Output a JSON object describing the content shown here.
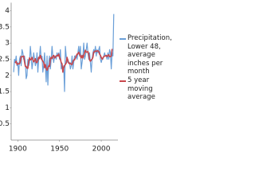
{
  "chart_data": {
    "type": "line",
    "x": [
      1895,
      1896,
      1897,
      1898,
      1899,
      1900,
      1901,
      1902,
      1903,
      1904,
      1905,
      1906,
      1907,
      1908,
      1909,
      1910,
      1911,
      1912,
      1913,
      1914,
      1915,
      1916,
      1917,
      1918,
      1919,
      1920,
      1921,
      1922,
      1923,
      1924,
      1925,
      1926,
      1927,
      1928,
      1929,
      1930,
      1931,
      1932,
      1933,
      1934,
      1935,
      1936,
      1937,
      1938,
      1939,
      1940,
      1941,
      1942,
      1943,
      1944,
      1945,
      1946,
      1947,
      1948,
      1949,
      1950,
      1951,
      1952,
      1953,
      1954,
      1955,
      1956,
      1957,
      1958,
      1959,
      1960,
      1961,
      1962,
      1963,
      1964,
      1965,
      1966,
      1967,
      1968,
      1969,
      1970,
      1971,
      1972,
      1973,
      1974,
      1975,
      1976,
      1977,
      1978,
      1979,
      1980,
      1981,
      1982,
      1983,
      1984,
      1985,
      1986,
      1987,
      1988,
      1989,
      1990,
      1991,
      1992,
      1993,
      1994,
      1995,
      1996,
      1997,
      1998,
      1999,
      2000,
      2001,
      2002,
      2003,
      2004,
      2005,
      2006,
      2007,
      2008,
      2009,
      2010,
      2011,
      2012,
      2013,
      2014,
      2015
    ],
    "series": [
      {
        "name": "Precipitation, Lower 48, average inches per month",
        "color": "#6a9fd8",
        "values": [
          2.1,
          2.5,
          2.4,
          2.6,
          2.3,
          2.4,
          2.0,
          2.5,
          2.6,
          2.3,
          2.8,
          2.7,
          2.5,
          2.6,
          2.4,
          1.9,
          2.0,
          2.5,
          2.3,
          2.4,
          2.9,
          2.6,
          2.2,
          2.4,
          2.7,
          2.5,
          2.3,
          2.4,
          2.7,
          2.1,
          2.5,
          2.6,
          2.9,
          2.5,
          2.6,
          2.1,
          2.3,
          2.7,
          2.3,
          1.8,
          2.6,
          1.7,
          2.4,
          2.6,
          2.2,
          2.5,
          2.9,
          2.6,
          2.4,
          2.6,
          2.6,
          2.5,
          2.7,
          2.6,
          2.7,
          2.5,
          2.8,
          2.2,
          2.3,
          2.2,
          2.3,
          1.5,
          2.9,
          2.6,
          2.4,
          2.5,
          2.4,
          2.4,
          2.2,
          2.3,
          2.6,
          2.2,
          2.4,
          2.6,
          2.6,
          2.6,
          2.5,
          2.7,
          2.9,
          2.6,
          2.9,
          2.2,
          2.4,
          2.6,
          3.0,
          2.5,
          2.6,
          2.8,
          3.0,
          2.7,
          2.5,
          2.7,
          2.4,
          2.1,
          2.5,
          2.7,
          2.8,
          2.7,
          2.9,
          2.6,
          2.8,
          2.7,
          2.8,
          2.9,
          2.5,
          2.4,
          2.5,
          2.5,
          2.6,
          2.7,
          2.6,
          2.6,
          2.5,
          2.7,
          2.5,
          2.8,
          2.7,
          2.2,
          2.7,
          2.6,
          3.9
        ]
      },
      {
        "name": "5 year moving average",
        "color": "#c8464b",
        "values": [
          null,
          null,
          2.38,
          2.44,
          2.34,
          2.36,
          2.36,
          2.36,
          2.44,
          2.58,
          2.58,
          2.58,
          2.6,
          2.42,
          2.28,
          2.28,
          2.22,
          2.22,
          2.42,
          2.54,
          2.48,
          2.5,
          2.56,
          2.48,
          2.42,
          2.46,
          2.52,
          2.4,
          2.4,
          2.46,
          2.56,
          2.52,
          2.62,
          2.54,
          2.48,
          2.44,
          2.4,
          2.24,
          2.34,
          2.22,
          2.16,
          2.22,
          2.3,
          2.28,
          2.52,
          2.56,
          2.52,
          2.6,
          2.62,
          2.54,
          2.56,
          2.6,
          2.62,
          2.6,
          2.66,
          2.56,
          2.5,
          2.4,
          2.36,
          2.1,
          2.24,
          2.3,
          2.34,
          2.38,
          2.56,
          2.46,
          2.38,
          2.36,
          2.38,
          2.34,
          2.34,
          2.42,
          2.48,
          2.48,
          2.54,
          2.6,
          2.66,
          2.66,
          2.72,
          2.66,
          2.6,
          2.54,
          2.62,
          2.54,
          2.62,
          2.7,
          2.78,
          2.72,
          2.72,
          2.74,
          2.66,
          2.48,
          2.44,
          2.48,
          2.5,
          2.56,
          2.72,
          2.74,
          2.76,
          2.74,
          2.76,
          2.76,
          2.74,
          2.66,
          2.62,
          2.56,
          2.5,
          2.54,
          2.58,
          2.6,
          2.6,
          2.62,
          2.58,
          2.62,
          2.64,
          2.58,
          2.58,
          2.6,
          2.82,
          null,
          null
        ]
      }
    ],
    "xlim": [
      1892,
      2020
    ],
    "xticks": [
      1900,
      1950,
      2000
    ],
    "ylim": [
      0,
      4.25
    ],
    "yticks": [
      0.5,
      1,
      1.5,
      2,
      2.5,
      3,
      3.5,
      4
    ],
    "grid": false,
    "legend": "right"
  }
}
